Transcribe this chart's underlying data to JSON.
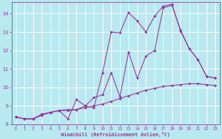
{
  "xlabel": "Windchill (Refroidissement éolien,°C)",
  "xlim": [
    -0.5,
    23.5
  ],
  "ylim": [
    8,
    14.6
  ],
  "yticks": [
    8,
    9,
    10,
    11,
    12,
    13,
    14
  ],
  "xticks": [
    0,
    1,
    2,
    3,
    4,
    5,
    6,
    7,
    8,
    9,
    10,
    11,
    12,
    13,
    14,
    15,
    16,
    17,
    18,
    19,
    20,
    21,
    22,
    23
  ],
  "bg_color": "#b8e8f0",
  "line_color": "#993399",
  "grid_color": "#ffffff",
  "series1_x": [
    0,
    1,
    2,
    3,
    4,
    5,
    6,
    7,
    8,
    9,
    10,
    11,
    12,
    13,
    14,
    15,
    16,
    17,
    18,
    19,
    20,
    21,
    22,
    23
  ],
  "series1_y": [
    8.4,
    8.3,
    8.3,
    8.5,
    8.65,
    8.75,
    8.8,
    8.8,
    8.9,
    9.0,
    9.1,
    9.25,
    9.4,
    9.55,
    9.7,
    9.85,
    9.95,
    10.05,
    10.1,
    10.15,
    10.2,
    10.2,
    10.15,
    10.1
  ],
  "series2_x": [
    0,
    1,
    2,
    3,
    4,
    5,
    6,
    7,
    8,
    9,
    10,
    11,
    12,
    13,
    14,
    15,
    16,
    17,
    18,
    19,
    20,
    21,
    22,
    23
  ],
  "series2_y": [
    8.4,
    8.3,
    8.3,
    8.55,
    8.65,
    8.75,
    8.75,
    8.8,
    9.0,
    9.45,
    9.6,
    10.8,
    9.5,
    11.9,
    10.5,
    11.7,
    12.0,
    14.3,
    14.45,
    13.1,
    12.1,
    11.5,
    10.6,
    10.5
  ],
  "series3_x": [
    0,
    1,
    2,
    3,
    4,
    5,
    6,
    7,
    8,
    9,
    10,
    11,
    12,
    13,
    14,
    15,
    16,
    17,
    18,
    19,
    20,
    21,
    22,
    23
  ],
  "series3_y": [
    8.4,
    8.3,
    8.3,
    8.55,
    8.65,
    8.75,
    8.3,
    9.35,
    9.0,
    8.9,
    10.8,
    13.0,
    12.95,
    14.05,
    13.6,
    13.0,
    13.85,
    14.4,
    14.5,
    13.05,
    12.1,
    11.5,
    10.6,
    10.5
  ]
}
